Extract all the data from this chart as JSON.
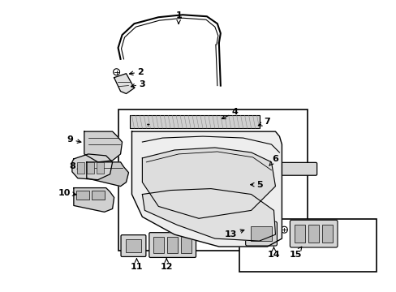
{
  "background_color": "#ffffff",
  "line_color": "#000000",
  "gray_fill": "#e8e8e8",
  "mid_gray": "#cccccc",
  "dark_gray": "#aaaaaa",
  "figsize": [
    4.89,
    3.6
  ],
  "dpi": 100,
  "label_positions": {
    "1": [
      220,
      18,
      220,
      32
    ],
    "2": [
      173,
      88,
      155,
      91
    ],
    "3": [
      175,
      103,
      157,
      107
    ],
    "4": [
      290,
      138,
      270,
      148
    ],
    "5": [
      320,
      228,
      305,
      228
    ],
    "6": [
      340,
      196,
      330,
      207
    ],
    "7": [
      330,
      150,
      315,
      156
    ],
    "8": [
      88,
      205,
      103,
      208
    ],
    "9": [
      85,
      172,
      103,
      176
    ],
    "10": [
      78,
      238,
      97,
      241
    ],
    "11": [
      168,
      330,
      168,
      316
    ],
    "12": [
      205,
      330,
      205,
      316
    ],
    "13": [
      285,
      290,
      305,
      283
    ],
    "14": [
      338,
      315,
      338,
      302
    ],
    "15": [
      365,
      315,
      375,
      302
    ]
  }
}
